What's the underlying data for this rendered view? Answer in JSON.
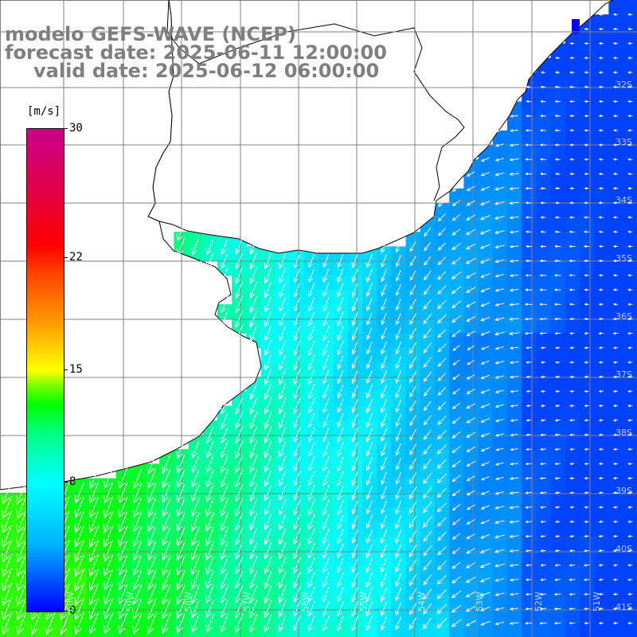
{
  "title": {
    "line1": "modelo GEFS-WAVE (NCEP)",
    "line2": "forecast date: 2025-06-11 12:00:00",
    "line3": "valid date: 2025-06-12 06:00:00"
  },
  "colorbar": {
    "unit": "[m/s]",
    "ticks": [
      {
        "label": "30",
        "value": 30
      },
      {
        "label": "22",
        "value": 22
      },
      {
        "label": "15",
        "value": 15
      },
      {
        "label": "8",
        "value": 8
      },
      {
        "label": "0",
        "value": 0
      }
    ],
    "color_stops": [
      "#0000ff",
      "#00b4ff",
      "#00ffff",
      "#00ff80",
      "#00ff00",
      "#ffff00",
      "#ff9900",
      "#ff0000",
      "#c8008c"
    ]
  },
  "map": {
    "land_color": "#ffffff",
    "coastline_color": "#000000",
    "grid_color": "#808080",
    "arrow_color": "#ffffff",
    "lat_labels": [
      "32S",
      "33S",
      "34S",
      "35S",
      "36S",
      "37S",
      "38S",
      "39S",
      "40S",
      "41S"
    ],
    "lon_labels": [
      "60W",
      "59W",
      "58W",
      "57W",
      "56W",
      "55W",
      "54W",
      "53W",
      "52W",
      "51W"
    ],
    "partial_lat_labels": [
      "32S",
      "33S",
      "34S",
      "35S",
      "36S",
      "37S",
      "38S",
      "39S",
      "40S",
      "41S"
    ]
  }
}
